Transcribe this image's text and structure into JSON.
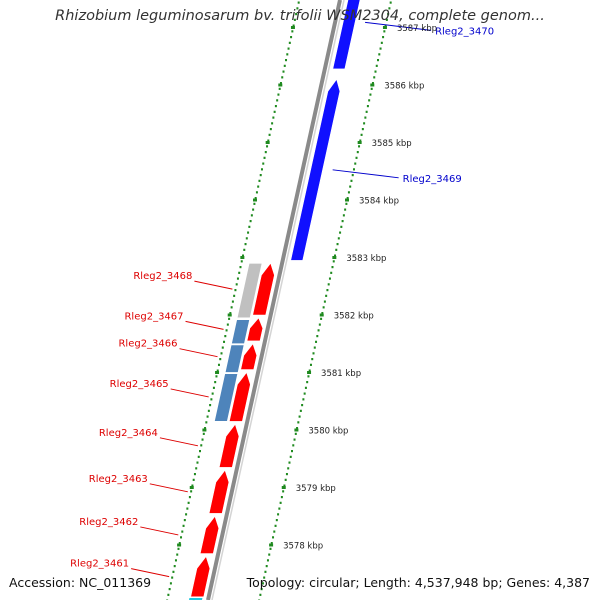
{
  "header": {
    "title": "Rhizobium leguminosarum bv. trifolii WSM2304, complete genom..."
  },
  "footer": {
    "accession": "Accession: NC_011369",
    "summary": "Topology: circular; Length: 4,537,948 bp; Genes: 4,387"
  },
  "colors": {
    "forward_gene": "#1010ff",
    "reverse_gene": "#ff0000",
    "label_forward": "#0000cc",
    "label_reverse": "#dd0000",
    "backbone": "#8a8a8a",
    "tick": "#1f8a1f",
    "pseudogene_grey": "#c0c0c0",
    "pseudogene_blue": "#4e84bb",
    "highlight_cyan": "#22c8e0"
  },
  "scale": {
    "ticks": [
      {
        "label": "3587 kbp"
      },
      {
        "label": "3586 kbp"
      },
      {
        "label": "3585 kbp"
      },
      {
        "label": "3584 kbp"
      },
      {
        "label": "3583 kbp"
      },
      {
        "label": "3582 kbp"
      },
      {
        "label": "3581 kbp"
      },
      {
        "label": "3580 kbp"
      },
      {
        "label": "3579 kbp"
      },
      {
        "label": "3578 kbp"
      }
    ]
  },
  "genes": [
    {
      "name": "Rleg2_3470",
      "strand": "forward",
      "type": "cds",
      "start_kbp": 3586.28,
      "end_kbp": 3587.9
    },
    {
      "name": "Rleg2_3469",
      "strand": "forward",
      "type": "cds",
      "start_kbp": 3582.95,
      "end_kbp": 3586.1
    },
    {
      "name": "Rleg2_3468",
      "strand": "reverse",
      "type": "cds",
      "start_kbp": 3582.0,
      "end_kbp": 3582.9
    },
    {
      "name": "Rleg2_3467",
      "strand": "reverse",
      "type": "cds",
      "start_kbp": 3581.55,
      "end_kbp": 3581.95
    },
    {
      "name": "Rleg2_3466",
      "strand": "reverse",
      "type": "cds",
      "start_kbp": 3581.05,
      "end_kbp": 3581.5
    },
    {
      "name": "Rleg2_3465",
      "strand": "reverse",
      "type": "cds",
      "start_kbp": 3580.15,
      "end_kbp": 3581.0
    },
    {
      "name": "Rleg2_3464",
      "strand": "reverse",
      "type": "cds",
      "start_kbp": 3579.35,
      "end_kbp": 3580.1
    },
    {
      "name": "Rleg2_3463",
      "strand": "reverse",
      "type": "cds",
      "start_kbp": 3578.55,
      "end_kbp": 3579.3
    },
    {
      "name": "Rleg2_3462",
      "strand": "reverse",
      "type": "cds",
      "start_kbp": 3577.85,
      "end_kbp": 3578.5
    },
    {
      "name": "Rleg2_3461",
      "strand": "reverse",
      "type": "cds",
      "start_kbp": 3577.1,
      "end_kbp": 3577.8
    }
  ],
  "pseudo_bars": [
    {
      "name": "Rleg2_3468",
      "color": "grey",
      "start_kbp": 3581.95,
      "end_kbp": 3582.9
    },
    {
      "name": "Rleg2_3467",
      "color": "blue",
      "start_kbp": 3581.5,
      "end_kbp": 3581.92
    },
    {
      "name": "Rleg2_3466",
      "color": "blue",
      "start_kbp": 3581.0,
      "end_kbp": 3581.48
    },
    {
      "name": "Rleg2_3465",
      "color": "blue",
      "start_kbp": 3580.15,
      "end_kbp": 3580.98
    }
  ]
}
